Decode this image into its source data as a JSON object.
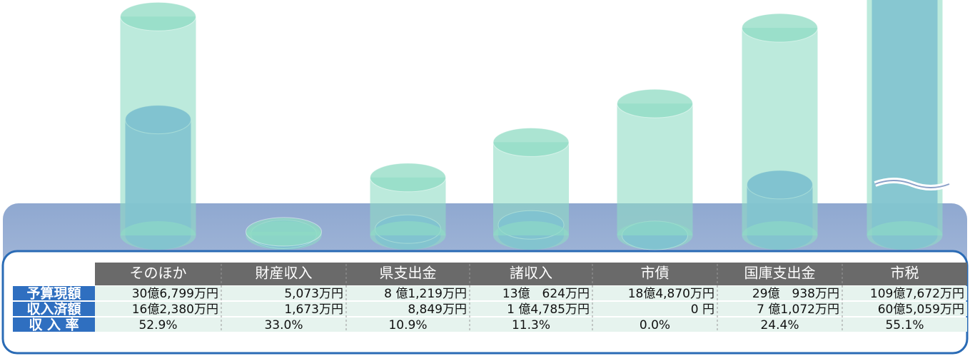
{
  "chart_data": {
    "type": "cylinder",
    "categories": [
      "そのほか",
      "財産収入",
      "県支出金",
      "諸収入",
      "市債",
      "国庫支出金",
      "市税"
    ],
    "series": [
      {
        "name": "予算現額",
        "color": "#8fdcc4",
        "values": [
          306799,
          5073,
          81219,
          130624,
          184870,
          290938,
          1097672
        ],
        "value_labels": [
          "30億6,799万円",
          "5,073万円",
          "8 億1,219万円",
          "13億　624万円",
          "18億4,870万円",
          "29億　938万円",
          "109億7,672万円"
        ]
      },
      {
        "name": "収入済額",
        "color": "#6d9fe0",
        "values": [
          162380,
          1673,
          8849,
          14785,
          0,
          71072,
          605059
        ],
        "value_labels": [
          "16億2,380万円",
          "1,673万円",
          "8,849万円",
          "1 億4,785万円",
          "0 円",
          "7 億1,072万円",
          "60億5,059万円"
        ]
      },
      {
        "name": "収 入 率",
        "values": [
          52.9,
          33.0,
          10.9,
          11.3,
          0.0,
          24.4,
          55.1
        ],
        "value_labels": [
          "52.9%",
          "33.0%",
          "10.9%",
          "11.3%",
          "0.0%",
          "24.4%",
          "55.1%"
        ]
      }
    ]
  }
}
